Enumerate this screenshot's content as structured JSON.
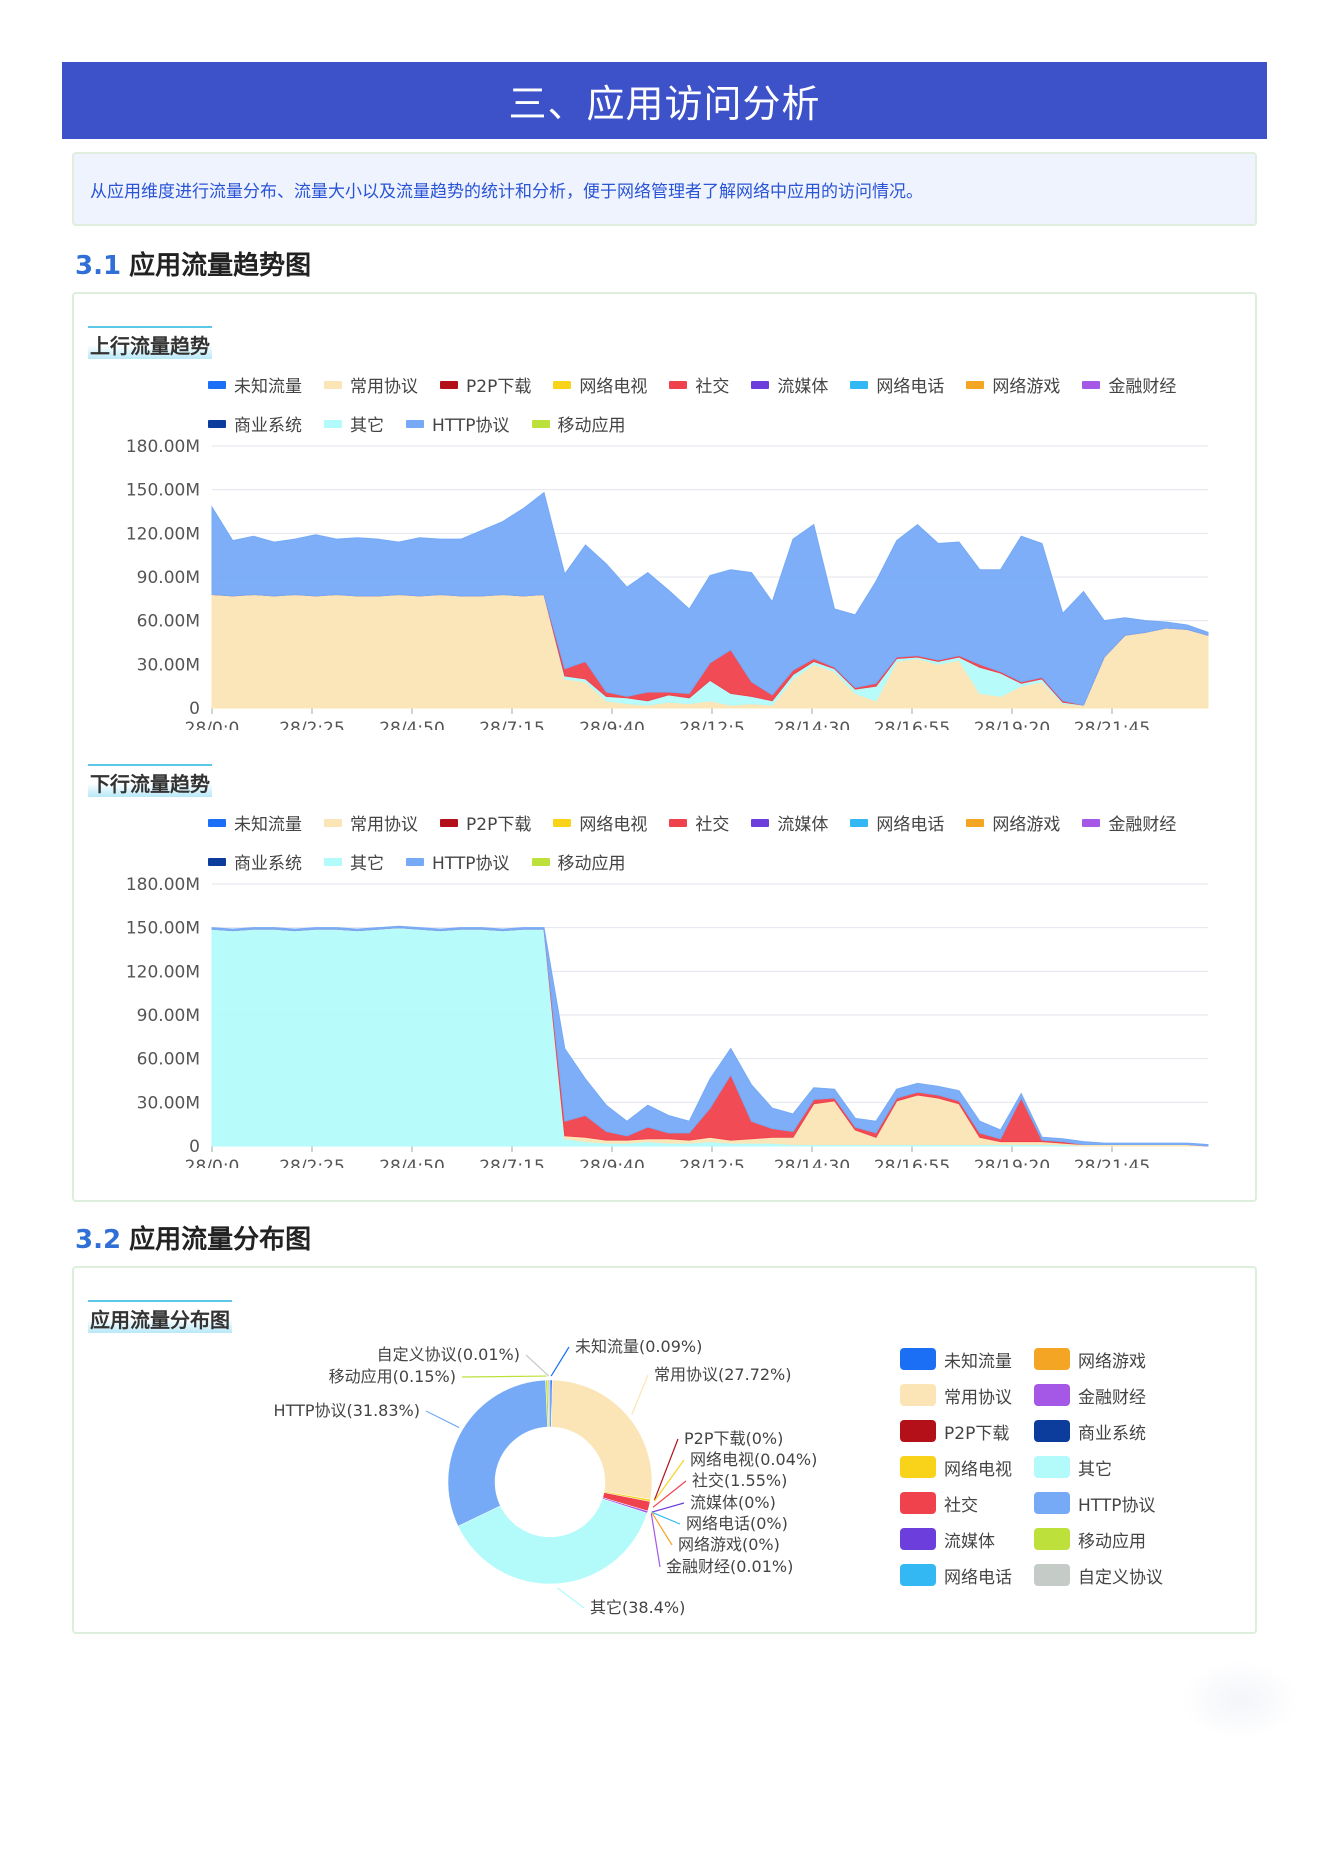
{
  "header": {
    "title": "三、应用访问分析"
  },
  "intro": {
    "text": "从应用维度进行流量分布、流量大小以及流量趋势的统计和分析，便于网络管理者了解网络中应用的访问情况。"
  },
  "sections": [
    {
      "num": "3.1",
      "title": "应用流量趋势图"
    },
    {
      "num": "3.2",
      "title": "应用流量分布图"
    }
  ],
  "colors": {
    "未知流量": "#1a6ff5",
    "常用协议": "#fbe5b6",
    "P2P下载": "#b3101a",
    "网络电视": "#f8d31a",
    "社交": "#f0424c",
    "流媒体": "#6c3fdc",
    "网络电话": "#33b8f3",
    "网络游戏": "#f5a524",
    "金融财经": "#a558e6",
    "商业系统": "#0d3d9c",
    "其它": "#b3fbfb",
    "HTTP协议": "#76aaf7",
    "移动应用": "#bde03b",
    "自定义协议": "#c5ccc8"
  },
  "line_legend": [
    "未知流量",
    "常用协议",
    "P2P下载",
    "网络电视",
    "社交",
    "流媒体",
    "网络电话",
    "网络游戏",
    "金融财经",
    "商业系统",
    "其它",
    "HTTP协议",
    "移动应用"
  ],
  "chart_data": [
    {
      "type": "area",
      "title": "上行流量趋势",
      "stacked": true,
      "y_ticks": [
        "180.00M",
        "150.00M",
        "120.00M",
        "90.00M",
        "60.00M",
        "30.00M",
        "0"
      ],
      "ylim": [
        0,
        180
      ],
      "y_unit": "M",
      "x_ticks": [
        "28/0:0",
        "28/2:25",
        "28/4:50",
        "28/7:15",
        "28/9:40",
        "28/12:5",
        "28/14:30",
        "28/16:55",
        "28/19:20",
        "28/21:45"
      ],
      "x": [
        "28/0:0",
        "28/0:30",
        "28/1:0",
        "28/1:30",
        "28/2:0",
        "28/2:30",
        "28/3:0",
        "28/3:30",
        "28/4:0",
        "28/4:30",
        "28/5:0",
        "28/5:30",
        "28/6:0",
        "28/6:30",
        "28/7:0",
        "28/7:30",
        "28/8:0",
        "28/8:30",
        "28/9:0",
        "28/9:30",
        "28/10:0",
        "28/10:30",
        "28/11:0",
        "28/11:30",
        "28/12:0",
        "28/12:30",
        "28/13:0",
        "28/13:30",
        "28/14:0",
        "28/14:30",
        "28/15:0",
        "28/15:30",
        "28/16:0",
        "28/16:30",
        "28/17:0",
        "28/17:30",
        "28/18:0",
        "28/18:30",
        "28/19:0",
        "28/19:30",
        "28/20:0",
        "28/20:30",
        "28/21:0",
        "28/21:30",
        "28/22:0",
        "28/22:30",
        "28/23:0",
        "28/23:30",
        "28/23:59"
      ],
      "series": [
        {
          "name": "常用协议",
          "values": [
            78,
            77,
            78,
            77,
            78,
            77,
            78,
            77,
            77,
            78,
            77,
            78,
            77,
            77,
            78,
            77,
            78,
            20,
            18,
            5,
            3,
            2,
            4,
            3,
            5,
            2,
            3,
            2,
            20,
            30,
            25,
            10,
            5,
            32,
            34,
            30,
            33,
            10,
            8,
            15,
            18,
            3,
            2,
            35,
            50,
            52,
            55,
            54,
            50
          ]
        },
        {
          "name": "其它",
          "values": [
            0,
            0,
            0,
            0,
            0,
            0,
            0,
            0,
            0,
            0,
            0,
            0,
            0,
            0,
            0,
            0,
            0,
            2,
            2,
            3,
            4,
            3,
            5,
            4,
            14,
            8,
            5,
            3,
            3,
            2,
            2,
            3,
            10,
            2,
            1,
            2,
            2,
            18,
            16,
            2,
            2,
            1,
            0,
            0,
            0,
            0,
            0,
            0,
            0
          ]
        },
        {
          "name": "社交",
          "values": [
            0,
            0,
            0,
            0,
            0,
            0,
            0,
            0,
            0,
            0,
            0,
            0,
            0,
            0,
            0,
            0,
            0,
            5,
            12,
            3,
            1,
            6,
            2,
            3,
            12,
            30,
            10,
            4,
            3,
            2,
            1,
            1,
            2,
            1,
            1,
            1,
            1,
            2,
            1,
            1,
            1,
            1,
            0,
            0,
            0,
            0,
            0,
            0,
            0
          ]
        },
        {
          "name": "HTTP协议",
          "values": [
            60,
            38,
            40,
            37,
            38,
            42,
            38,
            40,
            39,
            36,
            40,
            38,
            39,
            45,
            50,
            60,
            70,
            65,
            80,
            88,
            75,
            82,
            70,
            58,
            60,
            55,
            75,
            64,
            90,
            92,
            40,
            50,
            70,
            80,
            90,
            80,
            78,
            65,
            70,
            100,
            92,
            60,
            78,
            25,
            12,
            8,
            4,
            3,
            2
          ]
        }
      ]
    },
    {
      "type": "area",
      "title": "下行流量趋势",
      "stacked": true,
      "y_ticks": [
        "180.00M",
        "150.00M",
        "120.00M",
        "90.00M",
        "60.00M",
        "30.00M",
        "0"
      ],
      "ylim": [
        0,
        180
      ],
      "y_unit": "M",
      "x_ticks": [
        "28/0:0",
        "28/2:25",
        "28/4:50",
        "28/7:15",
        "28/9:40",
        "28/12:5",
        "28/14:30",
        "28/16:55",
        "28/19:20",
        "28/21:45"
      ],
      "x": [
        "28/0:0",
        "28/0:30",
        "28/1:0",
        "28/1:30",
        "28/2:0",
        "28/2:30",
        "28/3:0",
        "28/3:30",
        "28/4:0",
        "28/4:30",
        "28/5:0",
        "28/5:30",
        "28/6:0",
        "28/6:30",
        "28/7:0",
        "28/7:30",
        "28/8:0",
        "28/8:30",
        "28/9:0",
        "28/9:30",
        "28/10:0",
        "28/10:30",
        "28/11:0",
        "28/11:30",
        "28/12:0",
        "28/12:30",
        "28/13:0",
        "28/13:30",
        "28/14:0",
        "28/14:30",
        "28/15:0",
        "28/15:30",
        "28/16:0",
        "28/16:30",
        "28/17:0",
        "28/17:30",
        "28/18:0",
        "28/18:30",
        "28/19:0",
        "28/19:30",
        "28/20:0",
        "28/20:30",
        "28/21:0",
        "28/21:30",
        "28/22:0",
        "28/22:30",
        "28/23:0",
        "28/23:30",
        "28/23:59"
      ],
      "series": [
        {
          "name": "其它",
          "values": [
            149,
            148,
            149,
            149,
            148,
            149,
            149,
            148,
            149,
            150,
            149,
            148,
            149,
            149,
            148,
            149,
            149,
            5,
            3,
            2,
            2,
            3,
            2,
            2,
            3,
            2,
            2,
            2,
            1,
            1,
            1,
            1,
            1,
            1,
            1,
            1,
            1,
            1,
            1,
            1,
            1,
            1,
            0,
            0,
            0,
            0,
            0,
            0,
            0
          ]
        },
        {
          "name": "常用协议",
          "values": [
            0,
            0,
            0,
            0,
            0,
            0,
            0,
            0,
            0,
            0,
            0,
            0,
            0,
            0,
            0,
            0,
            0,
            2,
            3,
            2,
            2,
            2,
            3,
            2,
            3,
            2,
            3,
            4,
            5,
            28,
            30,
            10,
            5,
            30,
            34,
            32,
            28,
            5,
            2,
            2,
            2,
            1,
            1,
            1,
            1,
            1,
            1,
            1,
            0
          ]
        },
        {
          "name": "社交",
          "values": [
            0,
            0,
            0,
            0,
            0,
            0,
            0,
            0,
            0,
            0,
            0,
            0,
            0,
            0,
            0,
            0,
            0,
            10,
            15,
            6,
            3,
            8,
            4,
            5,
            20,
            45,
            12,
            6,
            4,
            3,
            2,
            2,
            3,
            2,
            2,
            2,
            2,
            3,
            2,
            30,
            1,
            1,
            0,
            0,
            0,
            0,
            0,
            0,
            0
          ]
        },
        {
          "name": "HTTP协议",
          "values": [
            1,
            1,
            1,
            1,
            1,
            1,
            1,
            1,
            1,
            1,
            1,
            1,
            1,
            1,
            1,
            1,
            1,
            50,
            25,
            18,
            10,
            15,
            12,
            8,
            20,
            18,
            25,
            14,
            12,
            8,
            6,
            6,
            8,
            6,
            6,
            6,
            7,
            8,
            6,
            3,
            2,
            2,
            2,
            1,
            1,
            1,
            1,
            1,
            1
          ]
        }
      ]
    },
    {
      "type": "pie",
      "title": "应用流量分布图",
      "slices": [
        {
          "name": "未知流量",
          "label": "未知流量(0.09%)",
          "value": 0.09
        },
        {
          "name": "常用协议",
          "label": "常用协议(27.72%)",
          "value": 27.72
        },
        {
          "name": "P2P下载",
          "label": "P2P下载(0%)",
          "value": 0
        },
        {
          "name": "网络电视",
          "label": "网络电视(0.04%)",
          "value": 0.04
        },
        {
          "name": "社交",
          "label": "社交(1.55%)",
          "value": 1.55
        },
        {
          "name": "流媒体",
          "label": "流媒体(0%)",
          "value": 0
        },
        {
          "name": "网络电话",
          "label": "网络电话(0%)",
          "value": 0
        },
        {
          "name": "网络游戏",
          "label": "网络游戏(0%)",
          "value": 0
        },
        {
          "name": "金融财经",
          "label": "金融财经(0.01%)",
          "value": 0.01
        },
        {
          "name": "其它",
          "label": "其它(38.4%)",
          "value": 38.4
        },
        {
          "name": "HTTP协议",
          "label": "HTTP协议(31.83%)",
          "value": 31.83
        },
        {
          "name": "移动应用",
          "label": "移动应用(0.15%)",
          "value": 0.15
        },
        {
          "name": "自定义协议",
          "label": "自定义协议(0.01%)",
          "value": 0.01
        }
      ],
      "legend": [
        "未知流量",
        "网络游戏",
        "常用协议",
        "金融财经",
        "P2P下载",
        "商业系统",
        "网络电视",
        "其它",
        "社交",
        "HTTP协议",
        "流媒体",
        "移动应用",
        "网络电话",
        "自定义协议"
      ]
    }
  ]
}
